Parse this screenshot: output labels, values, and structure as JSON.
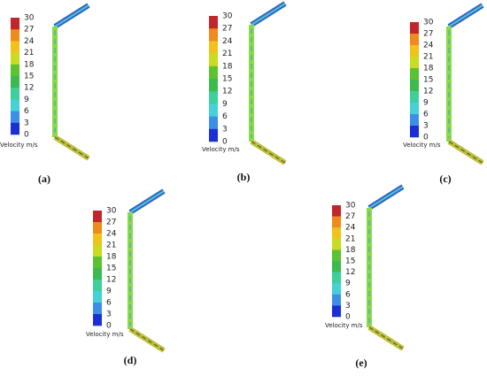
{
  "panels": [
    {
      "label": "(a)",
      "legend_title": "Velocity m/s",
      "ticks": [
        "30",
        "27",
        "24",
        "21",
        "18",
        "15",
        "12",
        "9",
        "6",
        "3",
        "0"
      ]
    },
    {
      "label": "(b)",
      "legend_title": "Velocity m/s",
      "ticks": [
        "30",
        "27",
        "24",
        "21",
        "18",
        "15",
        "12",
        "9",
        "6",
        "3",
        "0"
      ]
    },
    {
      "label": "(c)",
      "legend_title": "Velocity m/s",
      "ticks": [
        "30",
        "27",
        "24",
        "21",
        "18",
        "15",
        "12",
        "9",
        "6",
        "3",
        "0"
      ]
    },
    {
      "label": "(d)",
      "legend_title": "Velocity m/s",
      "ticks": [
        "30",
        "27",
        "24",
        "21",
        "18",
        "15",
        "12",
        "9",
        "6",
        "3",
        "0"
      ]
    },
    {
      "label": "(e)",
      "legend_title": "Velocity m/s",
      "ticks": [
        "30",
        "27",
        "24",
        "21",
        "18",
        "15",
        "12",
        "9",
        "6",
        "3",
        "0"
      ]
    }
  ]
}
